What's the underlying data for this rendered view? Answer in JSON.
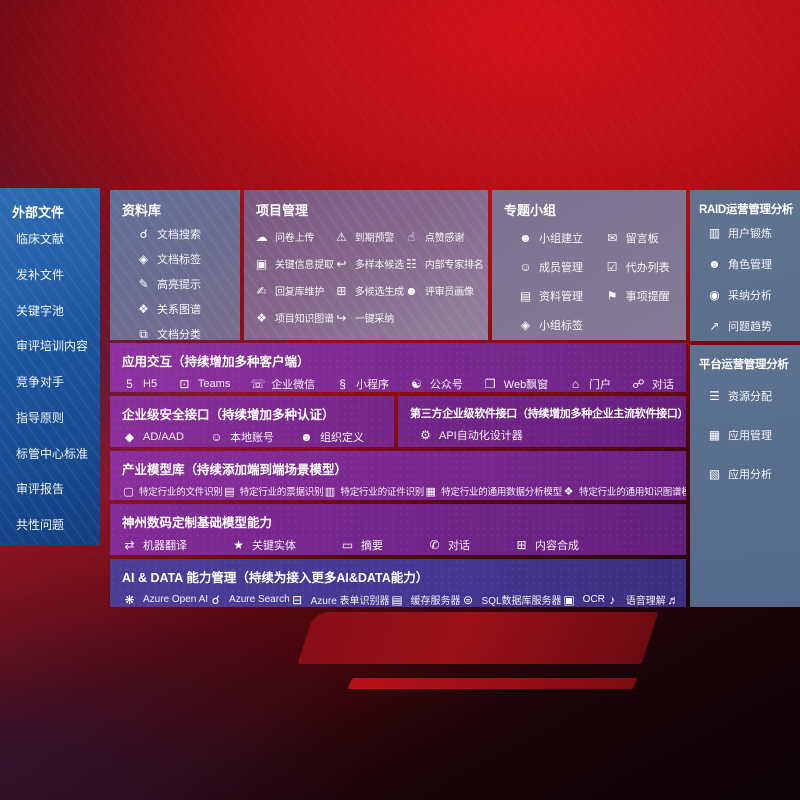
{
  "colors": {
    "background_red": "#b01016",
    "sidebar_blue": "#1d56a0",
    "top_panel_slate": "#66709a",
    "top_panel_mauve": "#82658a",
    "right_panel_steel": "#5d7190",
    "row_purple": "#7c2a91",
    "row_indigo": "#46368f"
  },
  "sidebar": {
    "title": "外部文件",
    "items": [
      {
        "label": "临床文献"
      },
      {
        "label": "发补文件"
      },
      {
        "label": "关键字池"
      },
      {
        "label": "审评培训内容"
      },
      {
        "label": "竞争对手"
      },
      {
        "label": "指导原则"
      },
      {
        "label": "标管中心标准"
      },
      {
        "label": "审评报告"
      },
      {
        "label": "共性问题"
      }
    ]
  },
  "panels": {
    "ziliaoku": {
      "title": "资料库",
      "items": [
        {
          "label": "文档搜索",
          "icon": "doc-search"
        },
        {
          "label": "文档标签",
          "icon": "tag"
        },
        {
          "label": "高亮提示",
          "icon": "highlight-pen"
        },
        {
          "label": "关系图谱",
          "icon": "relation-graph"
        },
        {
          "label": "文档分类",
          "icon": "doc-classify"
        }
      ]
    },
    "xiangmu": {
      "title": "项目管理",
      "items": [
        {
          "label": "问卷上传",
          "icon": "cloud-upload"
        },
        {
          "label": "到期预警",
          "icon": "alarm"
        },
        {
          "label": "点赞感谢",
          "icon": "thumbs-up"
        },
        {
          "label": "关键信息提取",
          "icon": "info-extract"
        },
        {
          "label": "多样本候选",
          "icon": "reply-arrow"
        },
        {
          "label": "内部专家排名",
          "icon": "ranking"
        },
        {
          "label": "回复库维护",
          "icon": "pen"
        },
        {
          "label": "多候选生成",
          "icon": "generate"
        },
        {
          "label": "评审员画像",
          "icon": "person"
        },
        {
          "label": "项目知识图谱",
          "icon": "knowledge-graph"
        },
        {
          "label": "一键采纳",
          "icon": "adopt-arrow"
        }
      ]
    },
    "zhuanti": {
      "title": "专题小组",
      "items": [
        {
          "label": "小组建立",
          "icon": "group"
        },
        {
          "label": "留言板",
          "icon": "bbs"
        },
        {
          "label": "成员管理",
          "icon": "member-add"
        },
        {
          "label": "代办列表",
          "icon": "todo-list"
        },
        {
          "label": "资料管理",
          "icon": "archive"
        },
        {
          "label": "事项提醒",
          "icon": "bell"
        },
        {
          "label": "小组标签",
          "icon": "tag"
        }
      ]
    },
    "raid": {
      "title": "RAID运营管理分析",
      "items": [
        {
          "label": "用户锻炼",
          "icon": "user-card"
        },
        {
          "label": "角色管理",
          "icon": "role-people"
        },
        {
          "label": "采纳分析",
          "icon": "qa-chat"
        },
        {
          "label": "问题趋势",
          "icon": "trend-chart"
        }
      ]
    },
    "pingtai": {
      "title": "平台运营管理分析",
      "items": [
        {
          "label": "资源分配",
          "icon": "resource-list"
        },
        {
          "label": "应用管理",
          "icon": "app-grid"
        },
        {
          "label": "应用分析",
          "icon": "app-chart"
        }
      ]
    },
    "yingyong": {
      "title": "应用交互（持续增加多种客户端）",
      "items": [
        {
          "label": "H5",
          "icon": "html5"
        },
        {
          "label": "Teams",
          "icon": "teams"
        },
        {
          "label": "企业微信",
          "icon": "wechat-work"
        },
        {
          "label": "小程序",
          "icon": "miniprogram"
        },
        {
          "label": "公众号",
          "icon": "official-account"
        },
        {
          "label": "Web飘窗",
          "icon": "web-window"
        },
        {
          "label": "门户",
          "icon": "portal"
        },
        {
          "label": "对话",
          "icon": "dialog"
        }
      ]
    },
    "anquan": {
      "title": "企业级安全接口（持续增加多种认证）",
      "items": [
        {
          "label": "AD/AAD",
          "icon": "ad-aad"
        },
        {
          "label": "本地账号",
          "icon": "local-account"
        },
        {
          "label": "组织定义",
          "icon": "org-define"
        }
      ]
    },
    "disanfang": {
      "title": "第三方企业级软件接口（持续增加多种企业主流软件接口）",
      "items": [
        {
          "label": "API自动化设计器",
          "icon": "api-designer"
        }
      ]
    },
    "chanye": {
      "title": "产业模型库（持续添加端到端场景模型）",
      "items": [
        {
          "label": "特定行业的文件识别",
          "icon": "file-recog"
        },
        {
          "label": "特定行业的票据识别",
          "icon": "receipt-recog"
        },
        {
          "label": "特定行业的证件识别",
          "icon": "idcard-recog"
        },
        {
          "label": "特定行业的通用数据分析模型",
          "icon": "data-model"
        },
        {
          "label": "特定行业的通用知识图谱模型",
          "icon": "kg-model"
        }
      ]
    },
    "shenzhou": {
      "title": "神州数码定制基础模型能力",
      "items": [
        {
          "label": "机器翻译",
          "icon": "translate"
        },
        {
          "label": "关键实体",
          "icon": "entity"
        },
        {
          "label": "摘要",
          "icon": "summary"
        },
        {
          "label": "对话",
          "icon": "chat"
        },
        {
          "label": "内容合成",
          "icon": "compose"
        }
      ]
    },
    "aidata": {
      "title": "AI & DATA 能力管理（持续为接入更多AI&DATA能力）",
      "items": [
        {
          "label": "Azure Open AI",
          "icon": "openai"
        },
        {
          "label": "Azure Search",
          "icon": "azure-search"
        },
        {
          "label": "Azure 表单识别器",
          "icon": "form-recognizer"
        },
        {
          "label": "缓存服务器",
          "icon": "cache-server"
        },
        {
          "label": "SQL数据库服务器",
          "icon": "sql-db"
        },
        {
          "label": "OCR",
          "icon": "ocr"
        },
        {
          "label": "语音理解",
          "icon": "speech"
        },
        {
          "label": "TTS",
          "icon": "tts"
        }
      ]
    }
  },
  "icon_glyphs": {
    "doc-search": "☌",
    "tag": "◈",
    "highlight-pen": "✎",
    "relation-graph": "❖",
    "doc-classify": "⧉",
    "cloud-upload": "☁",
    "alarm": "⚠",
    "thumbs-up": "☝",
    "info-extract": "▣",
    "reply-arrow": "↩",
    "ranking": "☷",
    "pen": "✍",
    "generate": "⊞",
    "person": "☻",
    "knowledge-graph": "❖",
    "adopt-arrow": "↪",
    "group": "☻",
    "bbs": "✉",
    "member-add": "☺",
    "todo-list": "☑",
    "archive": "▤",
    "bell": "⚑",
    "user-card": "▥",
    "role-people": "☻",
    "qa-chat": "◉",
    "trend-chart": "↗",
    "resource-list": "☰",
    "app-grid": "▦",
    "app-chart": "▧",
    "html5": "5",
    "teams": "⊡",
    "wechat-work": "☏",
    "miniprogram": "§",
    "official-account": "☯",
    "web-window": "❐",
    "portal": "⌂",
    "dialog": "☍",
    "ad-aad": "◆",
    "local-account": "☺",
    "org-define": "☻",
    "api-designer": "⚙",
    "file-recog": "▢",
    "receipt-recog": "▤",
    "idcard-recog": "▥",
    "data-model": "▦",
    "kg-model": "❖",
    "translate": "⇄",
    "entity": "★",
    "summary": "▭",
    "chat": "✆",
    "compose": "⊞",
    "openai": "❋",
    "azure-search": "☌",
    "form-recognizer": "⊟",
    "cache-server": "▤",
    "sql-db": "⊜",
    "ocr": "▣",
    "speech": "♪",
    "tts": "♬"
  }
}
